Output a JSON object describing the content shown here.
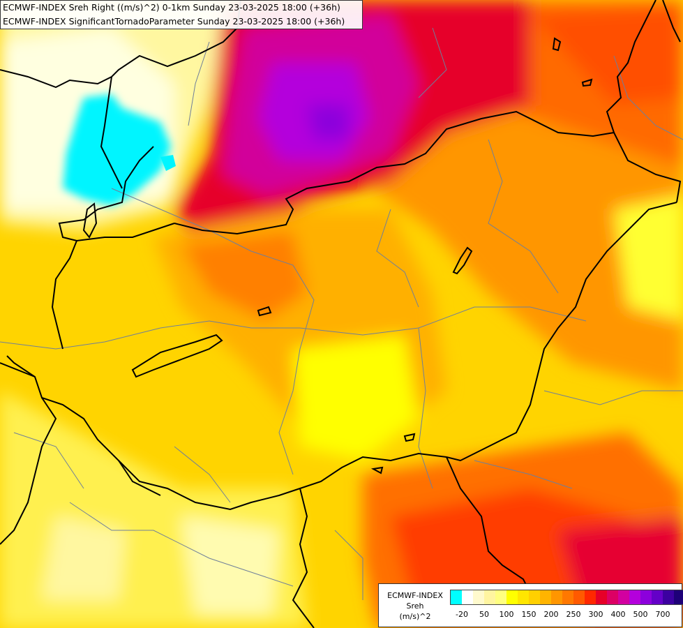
{
  "title": {
    "line1": "ECMWF-INDEX Sreh Right ((m/s)^2) 0-1km Sunday 23-03-2025 18:00 (+36h)",
    "line2": "ECMWF-INDEX SignificantTornadoParameter Sunday 23-03-2025 18:00 (+36h)"
  },
  "legend": {
    "model": "ECMWF-INDEX",
    "variable": "Sreh",
    "unit": "(m/s)^2",
    "colors": [
      "#00ffff",
      "#ffffff",
      "#fffacd",
      "#fff5a0",
      "#ffff80",
      "#ffff00",
      "#ffe600",
      "#ffd000",
      "#ffb400",
      "#ff9600",
      "#ff7800",
      "#ff5a00",
      "#ff2800",
      "#e60028",
      "#dc0064",
      "#d200a0",
      "#b400dc",
      "#8c00dc",
      "#6400c8",
      "#3c00a0",
      "#1e0078"
    ],
    "tick_labels": [
      "-20",
      "50",
      "100",
      "150",
      "200",
      "250",
      "300",
      "400",
      "500",
      "700"
    ]
  }
}
